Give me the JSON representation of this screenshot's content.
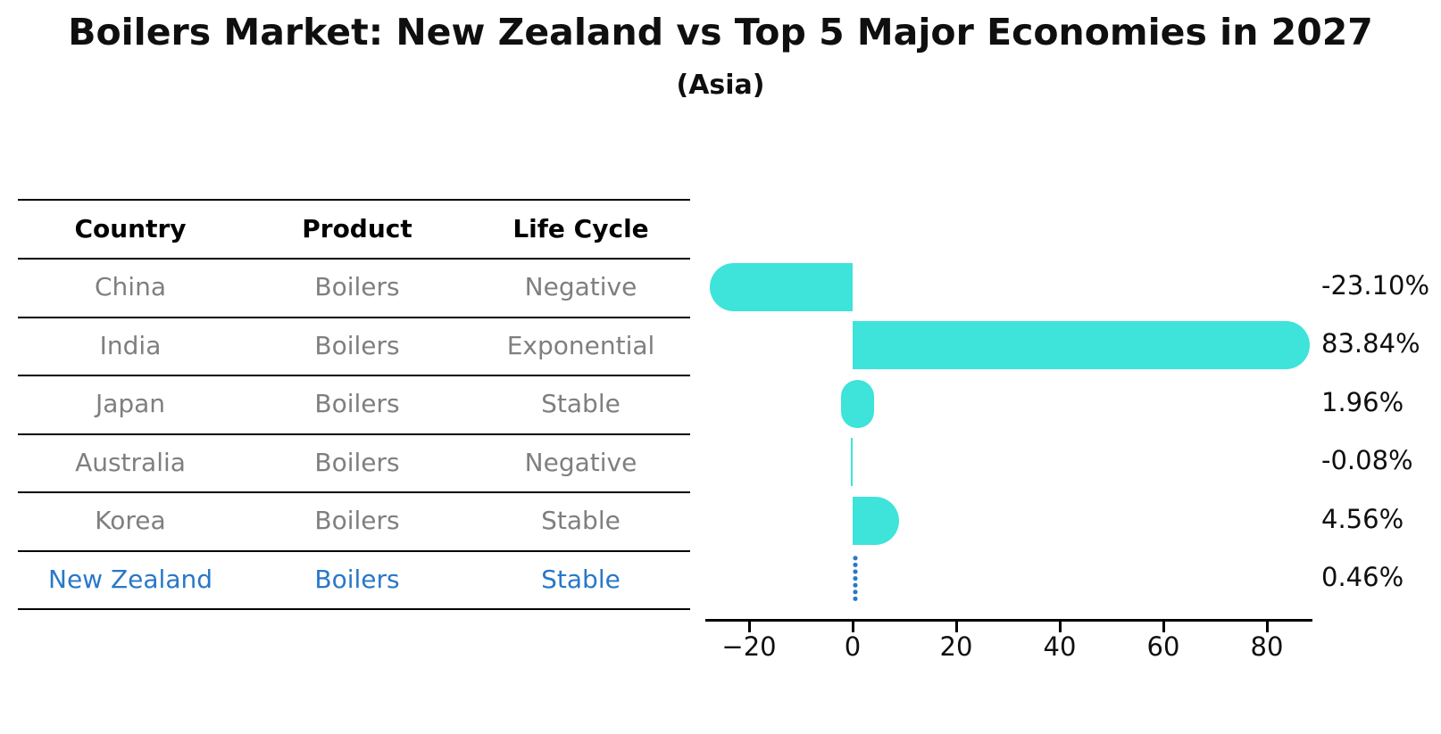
{
  "title": "Boilers Market: New Zealand vs Top 5 Major Economies in 2027",
  "subtitle": "(Asia)",
  "table": {
    "headers": [
      "Country",
      "Product",
      "Life Cycle"
    ],
    "rows": [
      {
        "country": "China",
        "product": "Boilers",
        "life_cycle": "Negative",
        "highlight": false
      },
      {
        "country": "India",
        "product": "Boilers",
        "life_cycle": "Exponential",
        "highlight": false
      },
      {
        "country": "Japan",
        "product": "Boilers",
        "life_cycle": "Stable",
        "highlight": false
      },
      {
        "country": "Australia",
        "product": "Boilers",
        "life_cycle": "Negative",
        "highlight": false
      },
      {
        "country": "Korea",
        "product": "Boilers",
        "life_cycle": "Stable",
        "highlight": false
      },
      {
        "country": "New Zealand",
        "product": "Boilers",
        "life_cycle": "Stable",
        "highlight": true
      }
    ]
  },
  "chart_data": {
    "type": "bar",
    "orientation": "horizontal",
    "categories": [
      "China",
      "India",
      "Japan",
      "Australia",
      "Korea",
      "New Zealand"
    ],
    "values": [
      -23.1,
      83.84,
      1.96,
      -0.08,
      4.56,
      0.46
    ],
    "value_labels": [
      "-23.10%",
      "83.84%",
      "1.96%",
      "-0.08%",
      "4.56%",
      "0.46%"
    ],
    "x_ticks": [
      -20,
      0,
      20,
      40,
      60,
      80
    ],
    "x_tick_labels": [
      "−20",
      "0",
      "20",
      "40",
      "60",
      "80"
    ],
    "xlim": [
      -28.5,
      88.8
    ],
    "grid": false,
    "legend": false,
    "bar_color": "#3ee3da",
    "highlight_series": "New Zealand",
    "highlight_color": "#2878c8",
    "value_label_color": "#0f0f0f",
    "table_text_color": "#7f7f7f"
  }
}
